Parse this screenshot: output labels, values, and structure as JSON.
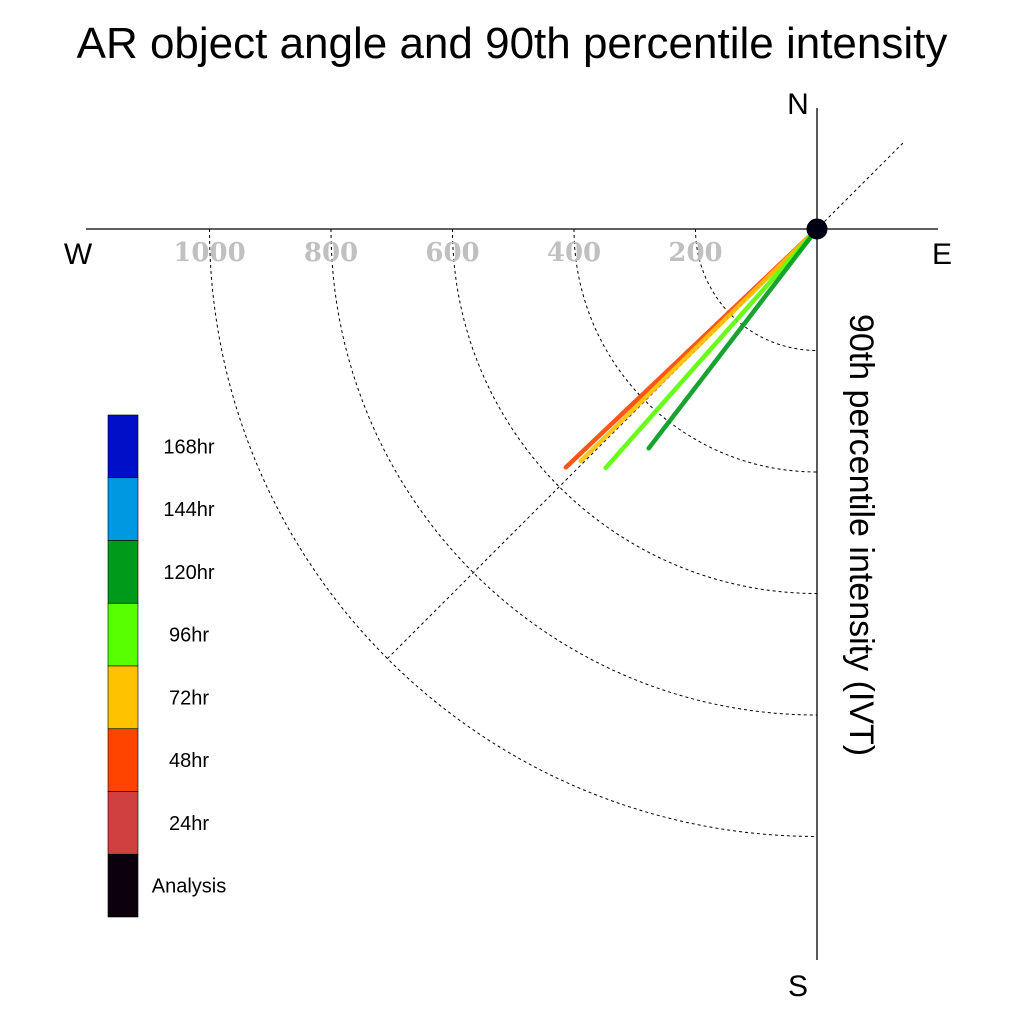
{
  "chart_data": {
    "type": "polar-line",
    "title": "AR object angle and 90th percentile intensity",
    "ylabel": "90th percentile intensity (IVT)",
    "compass": {
      "north": "N",
      "south": "S",
      "east": "E",
      "west": "W"
    },
    "radial_ticks": [
      200,
      400,
      600,
      800,
      1000
    ],
    "radial_tick_labels": [
      "200",
      "400",
      "600",
      "800",
      "1000"
    ],
    "reference_direction_deg": 225,
    "grid": true,
    "legend_position": "left",
    "legend": [
      {
        "label": "168hr",
        "color": "#0010c8"
      },
      {
        "label": "144hr",
        "color": "#0098e0"
      },
      {
        "label": "120hr",
        "color": "#009a1a"
      },
      {
        "label": "96hr",
        "color": "#58ff00"
      },
      {
        "label": "72hr",
        "color": "#ffc200"
      },
      {
        "label": "48hr",
        "color": "#ff4400"
      },
      {
        "label": "24hr",
        "color": "#d04040"
      },
      {
        "label": "Analysis",
        "color": "#0c000c"
      }
    ],
    "series": [
      {
        "name": "48hr",
        "color": "#ff4400",
        "direction_deg": 226.5,
        "intensity": 570
      },
      {
        "name": "72hr",
        "color": "#ffc200",
        "direction_deg": 225.5,
        "intensity": 545
      },
      {
        "name": "96hr",
        "color": "#58ff00",
        "direction_deg": 221.5,
        "intensity": 525
      },
      {
        "name": "120hr",
        "color": "#009a1a",
        "direction_deg": 217.5,
        "intensity": 455
      }
    ]
  }
}
